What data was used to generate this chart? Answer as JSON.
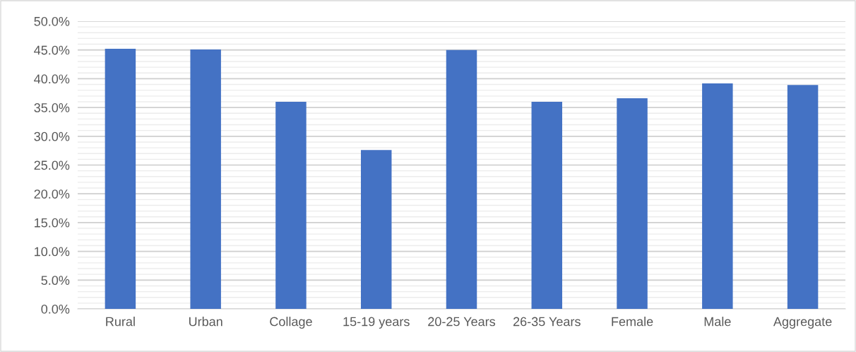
{
  "chart_data": {
    "type": "bar",
    "categories": [
      "Rural",
      "Urban",
      "Collage",
      "15-19 years",
      "20-25 Years",
      "26-35 Years",
      "Female",
      "Male",
      "Aggregate"
    ],
    "values": [
      45.2,
      45.1,
      36.0,
      27.6,
      45.0,
      36.0,
      36.6,
      39.2,
      38.9
    ],
    "color": "#4472c4",
    "ylim": [
      0,
      50
    ],
    "yticks": [
      {
        "value": 0,
        "label": "0.0%"
      },
      {
        "value": 5,
        "label": "5.0%"
      },
      {
        "value": 10,
        "label": "10.0%"
      },
      {
        "value": 15,
        "label": "15.0%"
      },
      {
        "value": 20,
        "label": "20.0%"
      },
      {
        "value": 25,
        "label": "25.0%"
      },
      {
        "value": 30,
        "label": "30.0%"
      },
      {
        "value": 35,
        "label": "35.0%"
      },
      {
        "value": 40,
        "label": "40.0%"
      },
      {
        "value": 45,
        "label": "45.0%"
      },
      {
        "value": 50,
        "label": "50.0%"
      }
    ],
    "grid": "y",
    "legend": false
  }
}
